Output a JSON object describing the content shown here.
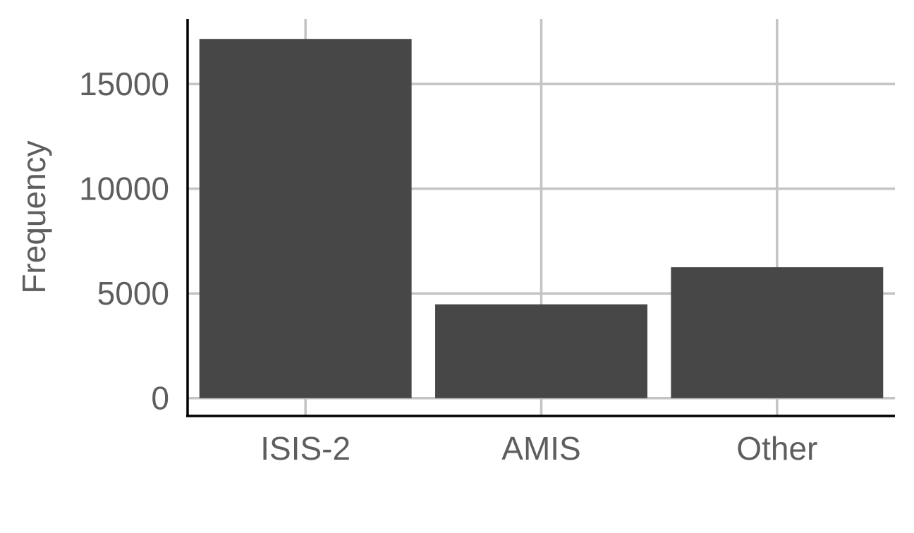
{
  "chart_data": {
    "type": "bar",
    "title": "",
    "xlabel": "",
    "ylabel": "Frequency",
    "categories": [
      "ISIS-2",
      "AMIS",
      "Other"
    ],
    "values": [
      17150,
      4480,
      6250
    ],
    "y_ticks": [
      0,
      5000,
      10000,
      15000
    ],
    "ylim": [
      -850,
      18100
    ],
    "grid": true,
    "legend": "none",
    "bar_color": "#474747",
    "grid_color": "#c4c4c4",
    "text_color": "#5e5e5e"
  }
}
